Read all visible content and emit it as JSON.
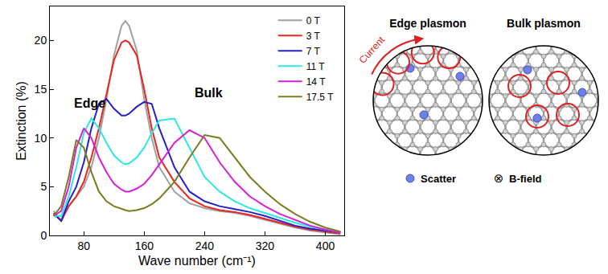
{
  "chart_data": {
    "type": "line",
    "x_label": "Wave number (cm⁻¹)",
    "y_label": "Extinction (%)",
    "xlim": [
      35,
      425
    ],
    "xticks": [
      80,
      160,
      240,
      320,
      400
    ],
    "ylim": [
      0,
      23.5
    ],
    "yticks": [
      0,
      5,
      10,
      15,
      20
    ],
    "grid": false,
    "legend": "top right",
    "x": [
      40,
      50,
      60,
      70,
      80,
      90,
      100,
      110,
      120,
      130,
      135,
      140,
      150,
      160,
      170,
      180,
      200,
      220,
      240,
      260,
      280,
      300,
      320,
      340,
      360,
      380,
      400,
      420
    ],
    "series": [
      {
        "name": "0 T",
        "color": "#a0a0a0",
        "values": [
          2.5,
          1.5,
          3,
          4,
          5,
          7,
          10,
          14,
          18.5,
          21.5,
          22,
          21.5,
          19,
          14,
          10,
          7,
          4.5,
          3.3,
          2.8,
          2.5,
          2.3,
          2,
          1.6,
          1.2,
          0.8,
          0.5,
          0.3,
          0.1
        ]
      },
      {
        "name": "3 T",
        "color": "#e8261c",
        "values": [
          2.3,
          1.5,
          3,
          4,
          5.5,
          8,
          11,
          14.5,
          18,
          19.8,
          20,
          19.8,
          18.5,
          15,
          11,
          8,
          5.5,
          3.8,
          3,
          2.6,
          2.4,
          2.1,
          1.7,
          1.3,
          0.9,
          0.6,
          0.4,
          0.2
        ]
      },
      {
        "name": "7 T",
        "color": "#2222cc",
        "values": [
          2.2,
          1.5,
          3.5,
          5,
          7.5,
          11,
          13.5,
          14,
          13,
          12.3,
          12.3,
          12.5,
          13.2,
          13.7,
          13.5,
          11,
          7,
          4.5,
          3.5,
          3,
          2.7,
          2.4,
          2,
          1.5,
          1,
          0.7,
          0.5,
          0.3
        ]
      },
      {
        "name": "11 T",
        "color": "#2de6e6",
        "values": [
          2,
          2,
          4,
          7,
          10.5,
          12,
          11,
          9.5,
          8.2,
          7.5,
          7.3,
          7.4,
          8,
          9,
          10.5,
          11.8,
          12,
          9,
          6,
          4.5,
          3.5,
          2.8,
          2.3,
          1.8,
          1.3,
          0.9,
          0.6,
          0.3
        ]
      },
      {
        "name": "14 T",
        "color": "#d81ed8",
        "values": [
          2,
          2.5,
          5,
          9,
          11,
          10,
          8,
          6.5,
          5.3,
          4.7,
          4.5,
          4.5,
          4.8,
          5.3,
          6.2,
          7.3,
          9.5,
          10.8,
          10,
          7.5,
          5.5,
          4,
          3,
          2.2,
          1.6,
          1,
          0.6,
          0.3
        ]
      },
      {
        "name": "17.5 T",
        "color": "#7b7b1f",
        "values": [
          2,
          3,
          6,
          9.8,
          9,
          6.5,
          4.5,
          3.5,
          3,
          2.7,
          2.6,
          2.5,
          2.6,
          2.8,
          3.2,
          3.8,
          5.5,
          8,
          10.3,
          10,
          8,
          6,
          4.5,
          3.2,
          2.2,
          1.4,
          0.8,
          0.4
        ]
      }
    ],
    "annotations": [
      {
        "text": "Edge",
        "x": 88,
        "y": 13.6
      },
      {
        "text": "Bulk",
        "x": 245,
        "y": 14.6
      }
    ]
  },
  "diagram": {
    "panels": [
      {
        "title": "Edge plasmon",
        "arrow_label": "Current"
      },
      {
        "title": "Bulk plasmon"
      }
    ],
    "legend": [
      {
        "label": "Scatter"
      },
      {
        "symbol": "⊗",
        "label": "B-field"
      }
    ]
  }
}
